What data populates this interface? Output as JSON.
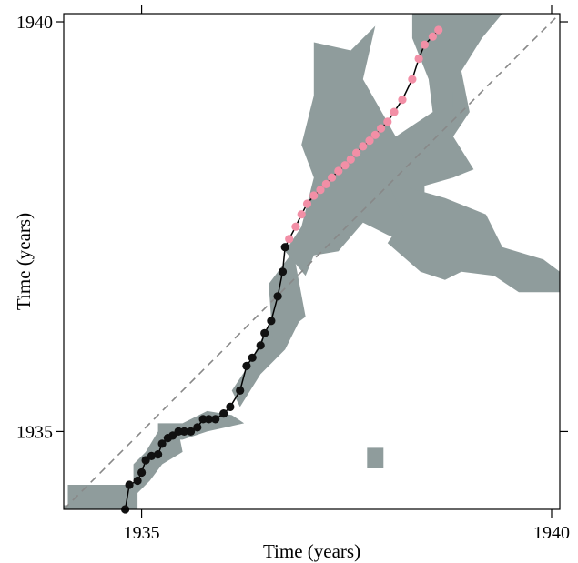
{
  "chart_data": {
    "type": "scatter",
    "title": "",
    "xlabel": "Time (years)",
    "ylabel": "Time (years)",
    "xlim": [
      1934.05,
      1940.1
    ],
    "ylim": [
      1934.05,
      1940.1
    ],
    "x_ticks": [
      1935,
      1940
    ],
    "x_tick_labels": [
      "1935",
      "1940"
    ],
    "y_ticks": [
      1935,
      1940
    ],
    "y_tick_labels": [
      "1935",
      "1940"
    ],
    "grid": false,
    "legend": "none",
    "reference_line": {
      "from": [
        1934.05,
        1934.05
      ],
      "to": [
        1940.1,
        1940.1
      ],
      "style": "dashed",
      "color": "#888888"
    },
    "colors": {
      "recurrence_fill": "#8f9c9c",
      "path_line": "#000000",
      "series_black": "#111111",
      "series_pink": "#f28fa6",
      "diagonal": "#888888"
    },
    "recurrence_regions": [
      [
        [
          1934.05,
          1934.1
        ],
        [
          1934.1,
          1934.1
        ],
        [
          1934.1,
          1934.35
        ],
        [
          1934.95,
          1934.35
        ],
        [
          1934.95,
          1934.05
        ],
        [
          1934.05,
          1934.05
        ]
      ],
      [
        [
          1934.9,
          1934.2
        ],
        [
          1935.1,
          1934.4
        ],
        [
          1935.25,
          1934.6
        ],
        [
          1935.5,
          1934.75
        ],
        [
          1935.45,
          1935.0
        ],
        [
          1935.2,
          1935.0
        ],
        [
          1935.05,
          1934.75
        ],
        [
          1934.9,
          1934.6
        ]
      ],
      [
        [
          1935.2,
          1934.9
        ],
        [
          1935.5,
          1934.9
        ],
        [
          1935.8,
          1935.0
        ],
        [
          1936.25,
          1935.1
        ],
        [
          1936.1,
          1935.2
        ],
        [
          1935.8,
          1935.25
        ],
        [
          1935.5,
          1935.1
        ],
        [
          1935.2,
          1935.1
        ]
      ],
      [
        [
          1936.2,
          1935.3
        ],
        [
          1936.45,
          1935.7
        ],
        [
          1936.75,
          1936.0
        ],
        [
          1936.95,
          1936.4
        ],
        [
          1936.7,
          1936.6
        ],
        [
          1936.5,
          1936.2
        ],
        [
          1936.3,
          1935.8
        ],
        [
          1936.1,
          1935.5
        ]
      ],
      [
        [
          1936.6,
          1936.1
        ],
        [
          1937.0,
          1936.4
        ],
        [
          1936.85,
          1937.2
        ],
        [
          1936.55,
          1936.8
        ]
      ],
      [
        [
          1937.75,
          1934.55
        ],
        [
          1937.95,
          1934.55
        ],
        [
          1937.95,
          1934.8
        ],
        [
          1937.75,
          1934.8
        ]
      ],
      [
        [
          1936.75,
          1937.2
        ],
        [
          1936.95,
          1937.5
        ],
        [
          1937.1,
          1938.1
        ],
        [
          1936.95,
          1938.5
        ],
        [
          1937.1,
          1939.1
        ],
        [
          1937.1,
          1939.75
        ],
        [
          1937.55,
          1939.65
        ],
        [
          1937.85,
          1939.95
        ],
        [
          1937.7,
          1939.3
        ],
        [
          1938.1,
          1938.6
        ],
        [
          1938.55,
          1938.9
        ],
        [
          1938.5,
          1939.3
        ],
        [
          1938.3,
          1939.8
        ],
        [
          1938.3,
          1940.1
        ],
        [
          1938.8,
          1940.1
        ],
        [
          1939.4,
          1940.1
        ],
        [
          1939.15,
          1939.8
        ],
        [
          1938.9,
          1939.4
        ],
        [
          1939.0,
          1938.9
        ],
        [
          1938.8,
          1938.6
        ],
        [
          1939.05,
          1938.2
        ],
        [
          1938.8,
          1938.1
        ],
        [
          1938.45,
          1938.0
        ],
        [
          1938.45,
          1937.6
        ],
        [
          1938.25,
          1937.3
        ],
        [
          1938.0,
          1937.4
        ],
        [
          1937.7,
          1937.55
        ],
        [
          1937.4,
          1937.2
        ],
        [
          1937.1,
          1937.15
        ],
        [
          1937.0,
          1936.9
        ]
      ],
      [
        [
          1938.0,
          1938.05
        ],
        [
          1938.7,
          1937.85
        ],
        [
          1939.2,
          1937.65
        ],
        [
          1939.4,
          1937.25
        ],
        [
          1939.9,
          1937.1
        ],
        [
          1940.1,
          1936.95
        ],
        [
          1940.1,
          1936.7
        ],
        [
          1939.6,
          1936.7
        ],
        [
          1939.3,
          1936.9
        ],
        [
          1938.9,
          1936.95
        ],
        [
          1938.7,
          1936.85
        ],
        [
          1938.4,
          1936.95
        ],
        [
          1938.0,
          1937.3
        ],
        [
          1938.2,
          1937.6
        ]
      ],
      [
        [
          1938.6,
          1938.95
        ],
        [
          1938.8,
          1938.95
        ],
        [
          1938.8,
          1939.15
        ],
        [
          1938.6,
          1939.15
        ]
      ],
      [
        [
          1937.35,
          1938.75
        ],
        [
          1937.55,
          1938.75
        ],
        [
          1937.55,
          1938.95
        ],
        [
          1937.35,
          1938.95
        ]
      ]
    ],
    "series": [
      {
        "color": "#111111",
        "x": [
          1934.8,
          1934.85,
          1934.95,
          1935.0,
          1935.05,
          1935.12,
          1935.2,
          1935.25,
          1935.32,
          1935.38,
          1935.45,
          1935.52,
          1935.6,
          1935.68,
          1935.75,
          1935.82,
          1935.9,
          1936.0,
          1936.08,
          1936.2,
          1936.28,
          1936.35,
          1936.45,
          1936.5,
          1936.58,
          1936.66,
          1936.72,
          1936.75
        ],
        "y": [
          1934.05,
          1934.35,
          1934.4,
          1934.5,
          1934.65,
          1934.7,
          1934.72,
          1934.85,
          1934.92,
          1934.95,
          1935.0,
          1935.0,
          1935.0,
          1935.05,
          1935.15,
          1935.15,
          1935.15,
          1935.22,
          1935.3,
          1935.5,
          1935.8,
          1935.9,
          1936.05,
          1936.2,
          1936.35,
          1936.65,
          1936.95,
          1937.25
        ]
      },
      {
        "color": "#f28fa6",
        "x": [
          1936.8,
          1936.88,
          1936.95,
          1937.02,
          1937.1,
          1937.18,
          1937.25,
          1937.32,
          1937.4,
          1937.48,
          1937.55,
          1937.62,
          1937.7,
          1937.78,
          1937.85,
          1937.92,
          1938.0,
          1938.08,
          1938.18,
          1938.3,
          1938.38,
          1938.45,
          1938.55,
          1938.62
        ],
        "y": [
          1937.35,
          1937.5,
          1937.65,
          1937.78,
          1937.88,
          1937.95,
          1938.02,
          1938.1,
          1938.18,
          1938.25,
          1938.32,
          1938.4,
          1938.48,
          1938.55,
          1938.62,
          1938.7,
          1938.78,
          1938.9,
          1939.05,
          1939.3,
          1939.55,
          1939.72,
          1939.82,
          1939.9
        ]
      }
    ]
  }
}
